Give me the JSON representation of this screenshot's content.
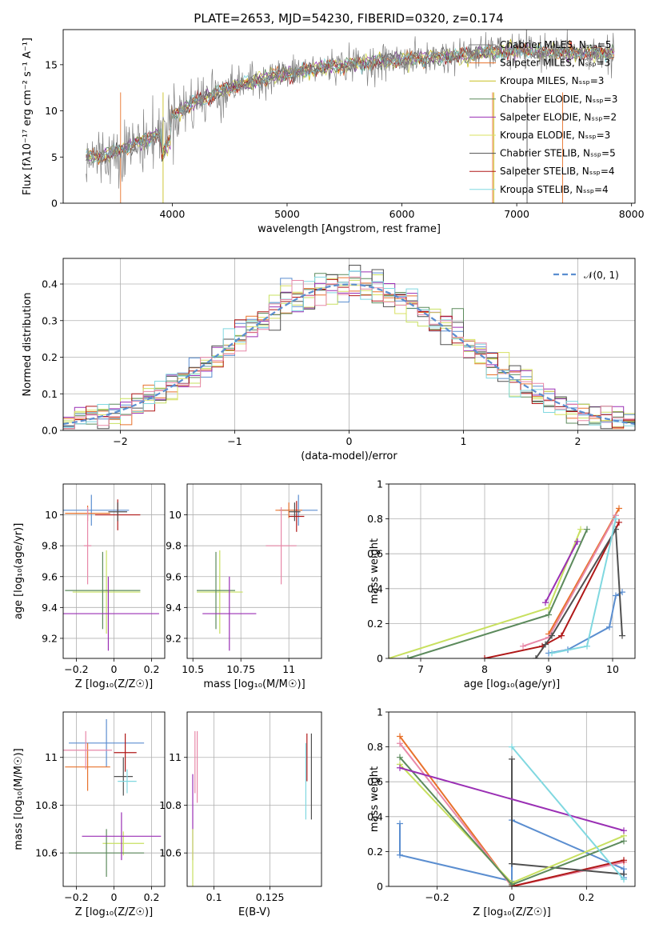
{
  "chart_data": [
    {
      "type": "line",
      "title": "PLATE=2653, MJD=54230, FIBERID=0320, z=0.174",
      "xlabel": "wavelength [Angstrom, rest frame]",
      "ylabel": "Flux [fλ10⁻¹⁷ erg cm⁻² s⁻¹ A⁻¹]",
      "xlim": [
        3050,
        8030
      ],
      "ylim": [
        0,
        18.8
      ],
      "xticks": [
        4000,
        5000,
        6000,
        7000,
        8000
      ],
      "yticks": [
        0,
        5,
        10,
        15
      ],
      "legend_position": "top-right",
      "series": [
        {
          "name": "Chabrier MILES, N_SSP=5",
          "color": "#808080"
        },
        {
          "name": "Salpeter MILES, N_SSP=3",
          "color": "#e8722c"
        },
        {
          "name": "Kroupa MILES, N_SSP=3",
          "color": "#c8c020"
        },
        {
          "name": "Chabrier ELODIE, N_SSP=3",
          "color": "#5c8a5c"
        },
        {
          "name": "Salpeter ELODIE, N_SSP=2",
          "color": "#9a2fb4"
        },
        {
          "name": "Kroupa ELODIE, N_SSP=3",
          "color": "#d8e060"
        },
        {
          "name": "Chabrier STELIB, N_SSP=5",
          "color": "#505050"
        },
        {
          "name": "Salpeter STELIB, N_SSP=4",
          "color": "#b01818"
        },
        {
          "name": "Kroupa STELIB, N_SSP=4",
          "color": "#80d8e0"
        }
      ],
      "continuum": [
        [
          3250,
          5
        ],
        [
          3400,
          5
        ],
        [
          3600,
          6
        ],
        [
          3900,
          7.5
        ],
        [
          4000,
          9.5
        ],
        [
          4200,
          11
        ],
        [
          4500,
          12.5
        ],
        [
          4800,
          13.5
        ],
        [
          5000,
          14
        ],
        [
          5200,
          14.5
        ],
        [
          5500,
          15
        ],
        [
          6000,
          15.5
        ],
        [
          6500,
          16
        ],
        [
          6600,
          16.2
        ],
        [
          7000,
          16.5
        ],
        [
          7400,
          16.3
        ],
        [
          7800,
          16.2
        ]
      ]
    },
    {
      "type": "histogram",
      "xlabel": "(data-model)/error",
      "ylabel": "Normed distribution",
      "xlim": [
        -2.5,
        2.5
      ],
      "ylim": [
        0,
        0.47
      ],
      "xticks": [
        -2,
        -1,
        0,
        1,
        2
      ],
      "yticks": [
        0.0,
        0.1,
        0.2,
        0.3,
        0.4
      ],
      "grid": true,
      "legend_position": "top-right",
      "reference": {
        "name": "𝒩(0, 1)",
        "color": "#5b8ed0",
        "dashed": true
      },
      "bin_width": 0.1
    },
    {
      "type": "scatter",
      "xlabel": "Z [log₁₀(Z/Z☉)]",
      "ylabel": "age  [log₁₀(age/yr)]",
      "xlim": [
        -0.27,
        0.27
      ],
      "ylim": [
        9.07,
        10.2
      ],
      "xticks": [
        -0.2,
        0.0,
        0.2
      ],
      "yticks": [
        9.2,
        9.4,
        9.6,
        9.8,
        10.0
      ],
      "grid": true,
      "points": [
        {
          "x": -0.12,
          "y": 10.03,
          "xerr": 0.2,
          "yerr": 0.1,
          "color": "#5b8ed0"
        },
        {
          "x": -0.14,
          "y": 10.01,
          "xerr": 0.12,
          "yerr": 0.05,
          "color": "#e8722c"
        },
        {
          "x": -0.14,
          "y": 9.8,
          "xerr": 0.02,
          "yerr": 0.25,
          "color": "#e888a8"
        },
        {
          "x": 0.02,
          "y": 10.0,
          "xerr": 0.12,
          "yerr": 0.1,
          "color": "#b01818"
        },
        {
          "x": 0.02,
          "y": 10.02,
          "xerr": 0.05,
          "yerr": 0.06,
          "color": "#505050"
        },
        {
          "x": -0.04,
          "y": 9.5,
          "xerr": 0.18,
          "yerr": 0.27,
          "color": "#c8e060"
        },
        {
          "x": -0.06,
          "y": 9.51,
          "xerr": 0.2,
          "yerr": 0.25,
          "color": "#5c8a5c"
        },
        {
          "x": -0.03,
          "y": 9.36,
          "xerr": 0.27,
          "yerr": 0.24,
          "color": "#9a2fb4"
        }
      ]
    },
    {
      "type": "scatter",
      "xlabel": "mass [log₁₀(M/M☉)]",
      "xlim": [
        10.47,
        11.17
      ],
      "ylim": [
        9.07,
        10.2
      ],
      "xticks": [
        10.5,
        10.75,
        11.0
      ],
      "yticks": [
        9.2,
        9.4,
        9.6,
        9.8,
        10.0
      ],
      "grid": true,
      "points": [
        {
          "x": 11.05,
          "y": 10.03,
          "xerr": 0.1,
          "yerr": 0.1,
          "color": "#5b8ed0"
        },
        {
          "x": 11.0,
          "y": 10.03,
          "xerr": 0.07,
          "yerr": 0.05,
          "color": "#e8722c"
        },
        {
          "x": 10.96,
          "y": 9.8,
          "xerr": 0.08,
          "yerr": 0.25,
          "color": "#e888a8"
        },
        {
          "x": 11.04,
          "y": 9.99,
          "xerr": 0.04,
          "yerr": 0.1,
          "color": "#b01818"
        },
        {
          "x": 11.03,
          "y": 10.02,
          "xerr": 0.03,
          "yerr": 0.06,
          "color": "#505050"
        },
        {
          "x": 10.64,
          "y": 9.5,
          "xerr": 0.12,
          "yerr": 0.27,
          "color": "#c8e060"
        },
        {
          "x": 10.62,
          "y": 9.51,
          "xerr": 0.1,
          "yerr": 0.25,
          "color": "#5c8a5c"
        },
        {
          "x": 10.69,
          "y": 9.36,
          "xerr": 0.14,
          "yerr": 0.24,
          "color": "#9a2fb4"
        }
      ]
    },
    {
      "type": "line",
      "xlabel": "age  [log₁₀(age/yr)]",
      "ylabel": "mass weight",
      "xlim": [
        6.5,
        10.35
      ],
      "ylim": [
        0,
        1.0
      ],
      "xticks": [
        7,
        8,
        9,
        10
      ],
      "yticks": [
        0.0,
        0.2,
        0.4,
        0.6,
        0.8,
        1.0
      ],
      "grid": true,
      "series": [
        {
          "color": "#5b8ed0",
          "x": [
            9.0,
            9.3,
            9.95,
            10.05,
            10.15
          ],
          "y": [
            0.03,
            0.05,
            0.18,
            0.36,
            0.38
          ]
        },
        {
          "color": "#e8722c",
          "x": [
            9.0,
            10.1
          ],
          "y": [
            0.14,
            0.86
          ]
        },
        {
          "color": "#e888a8",
          "x": [
            8.6,
            9.0,
            10.05
          ],
          "y": [
            0.07,
            0.12,
            0.82
          ]
        },
        {
          "color": "#b01818",
          "x": [
            8.0,
            8.9,
            9.2,
            10.1
          ],
          "y": [
            0.0,
            0.07,
            0.13,
            0.78
          ]
        },
        {
          "color": "#505050",
          "x": [
            8.8,
            8.95,
            9.05,
            10.05,
            10.15
          ],
          "y": [
            0.0,
            0.08,
            0.13,
            0.74,
            0.13
          ]
        },
        {
          "color": "#c8e060",
          "x": [
            6.5,
            9.0,
            9.5
          ],
          "y": [
            0.0,
            0.29,
            0.74
          ]
        },
        {
          "color": "#5c8a5c",
          "x": [
            6.8,
            9.0,
            9.6
          ],
          "y": [
            0.0,
            0.25,
            0.74
          ]
        },
        {
          "color": "#9a2fb4",
          "x": [
            8.95,
            9.45
          ],
          "y": [
            0.32,
            0.67
          ]
        },
        {
          "color": "#80d8e0",
          "x": [
            9.05,
            9.6,
            10.05
          ],
          "y": [
            0.03,
            0.07,
            0.8
          ]
        }
      ]
    },
    {
      "type": "scatter",
      "xlabel": "Z [log₁₀(Z/Z☉)]",
      "ylabel": "mass [log₁₀(M/M☉)]",
      "xlim": [
        -0.27,
        0.27
      ],
      "ylim": [
        10.46,
        11.19
      ],
      "xticks": [
        -0.2,
        0.0,
        0.2
      ],
      "yticks": [
        10.6,
        10.8,
        11.0
      ],
      "grid": true,
      "points": [
        {
          "x": -0.04,
          "y": 11.06,
          "xerr": 0.2,
          "yerr": 0.1,
          "color": "#5b8ed0"
        },
        {
          "x": -0.14,
          "y": 10.96,
          "xerr": 0.12,
          "yerr": 0.1,
          "color": "#e8722c"
        },
        {
          "x": -0.15,
          "y": 11.03,
          "xerr": 0.14,
          "yerr": 0.08,
          "color": "#e888a8"
        },
        {
          "x": 0.06,
          "y": 11.02,
          "xerr": 0.06,
          "yerr": 0.08,
          "color": "#b01818"
        },
        {
          "x": 0.05,
          "y": 10.92,
          "xerr": 0.05,
          "yerr": 0.08,
          "color": "#505050"
        },
        {
          "x": 0.07,
          "y": 10.9,
          "xerr": 0.05,
          "yerr": 0.05,
          "color": "#80d8e0"
        },
        {
          "x": 0.05,
          "y": 10.64,
          "xerr": 0.11,
          "yerr": 0.05,
          "color": "#c8e060"
        },
        {
          "x": -0.04,
          "y": 10.6,
          "xerr": 0.2,
          "yerr": 0.1,
          "color": "#5c8a5c"
        },
        {
          "x": 0.04,
          "y": 10.67,
          "xerr": 0.21,
          "yerr": 0.1,
          "color": "#9a2fb4"
        }
      ]
    },
    {
      "type": "scatter",
      "xlabel": "E(B-V)",
      "xlim": [
        0.088,
        0.148
      ],
      "ylim": [
        10.46,
        11.19
      ],
      "xticks": [
        0.1,
        0.125
      ],
      "yticks": [
        10.6,
        10.8,
        11.0
      ],
      "grid": true,
      "points": [
        {
          "x": 0.0915,
          "y": 10.98,
          "yerr": 0.13,
          "color": "#e888a8"
        },
        {
          "x": 0.0925,
          "y": 10.96,
          "yerr": 0.15,
          "color": "#e888a8"
        },
        {
          "x": 0.0905,
          "y": 10.75,
          "yerr": 0.18,
          "color": "#9a2fb4"
        },
        {
          "x": 0.0905,
          "y": 10.58,
          "yerr": 0.12,
          "color": "#c8e060"
        },
        {
          "x": 0.1415,
          "y": 11.0,
          "yerr": 0.1,
          "color": "#b01818"
        },
        {
          "x": 0.141,
          "y": 10.9,
          "yerr": 0.16,
          "color": "#80d8e0"
        },
        {
          "x": 0.1435,
          "y": 10.92,
          "yerr": 0.18,
          "color": "#505050"
        }
      ]
    },
    {
      "type": "line",
      "xlabel": "Z [log₁₀(Z/Z☉)]",
      "ylabel": "mass weight",
      "xlim": [
        -0.33,
        0.33
      ],
      "ylim": [
        0,
        1.0
      ],
      "xticks": [
        -0.2,
        0.0,
        0.2
      ],
      "yticks": [
        0.0,
        0.2,
        0.4,
        0.6,
        0.8,
        1.0
      ],
      "grid": true,
      "series": [
        {
          "color": "#5b8ed0",
          "x": [
            -0.3,
            -0.3,
            0.0,
            0.0,
            0.3,
            0.3
          ],
          "y": [
            0.36,
            0.18,
            0.03,
            0.38,
            0.1,
            0.05
          ]
        },
        {
          "color": "#e8722c",
          "x": [
            -0.3,
            0.0,
            0.3
          ],
          "y": [
            0.86,
            0.0,
            0.14
          ]
        },
        {
          "color": "#e888a8",
          "x": [
            -0.3,
            0.0,
            0.3
          ],
          "y": [
            0.82,
            0.0,
            0.14
          ]
        },
        {
          "color": "#b01818",
          "x": [
            0.0,
            0.3
          ],
          "y": [
            0.0,
            0.15
          ]
        },
        {
          "color": "#505050",
          "x": [
            0.0,
            0.0,
            0.3
          ],
          "y": [
            0.73,
            0.13,
            0.07
          ]
        },
        {
          "color": "#c8e060",
          "x": [
            -0.3,
            0.0,
            0.3
          ],
          "y": [
            0.7,
            0.02,
            0.29
          ]
        },
        {
          "color": "#5c8a5c",
          "x": [
            -0.3,
            0.0,
            0.3
          ],
          "y": [
            0.74,
            0.01,
            0.26
          ]
        },
        {
          "color": "#9a2fb4",
          "x": [
            -0.3,
            0.3
          ],
          "y": [
            0.68,
            0.32
          ]
        },
        {
          "color": "#80d8e0",
          "x": [
            0.0,
            0.3
          ],
          "y": [
            0.8,
            0.04
          ]
        }
      ]
    }
  ]
}
